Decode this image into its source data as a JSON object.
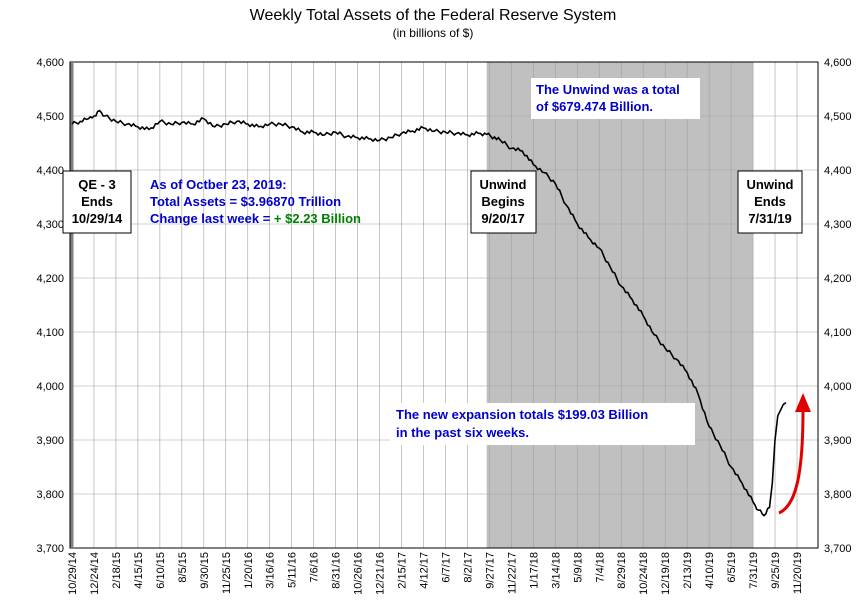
{
  "chart_data": {
    "type": "line",
    "title": "Weekly Total Assets of the Federal Reserve System",
    "subtitle": "(in billions of $)",
    "ylim": [
      3700,
      4600
    ],
    "y_ticks": [
      "3,700",
      "3,800",
      "3,900",
      "4,000",
      "4,100",
      "4,200",
      "4,300",
      "4,400",
      "4,500",
      "4,600"
    ],
    "x_ticks": [
      "10/29/14",
      "12/24/14",
      "2/18/15",
      "4/15/15",
      "6/10/15",
      "8/5/15",
      "9/30/15",
      "11/25/15",
      "1/20/16",
      "3/16/16",
      "5/11/16",
      "7/6/16",
      "8/31/16",
      "10/26/16",
      "12/21/16",
      "2/15/17",
      "4/12/17",
      "6/7/17",
      "8/2/17",
      "9/27/17",
      "11/22/17",
      "1/17/18",
      "3/14/18",
      "5/9/18",
      "7/4/18",
      "8/29/18",
      "10/24/18",
      "12/19/18",
      "2/13/19",
      "4/10/19",
      "6/5/19",
      "7/31/19",
      "9/25/19",
      "11/20/19"
    ],
    "grid": true,
    "line_color": "#000000",
    "shade_color": "#c0c0c0",
    "shaded_period": [
      "9/20/17",
      "7/31/19"
    ],
    "series": [
      {
        "points": [
          [
            "10/29/14",
            4485
          ],
          [
            "11/19/14",
            4490
          ],
          [
            "12/10/14",
            4495
          ],
          [
            "12/24/14",
            4500
          ],
          [
            "1/7/15",
            4510
          ],
          [
            "1/21/15",
            4500
          ],
          [
            "2/18/15",
            4490
          ],
          [
            "3/18/15",
            4485
          ],
          [
            "4/15/15",
            4480
          ],
          [
            "5/13/15",
            4475
          ],
          [
            "6/10/15",
            4490
          ],
          [
            "7/8/15",
            4485
          ],
          [
            "8/5/15",
            4488
          ],
          [
            "9/2/15",
            4485
          ],
          [
            "9/30/15",
            4495
          ],
          [
            "10/28/15",
            4480
          ],
          [
            "11/25/15",
            4485
          ],
          [
            "12/23/15",
            4490
          ],
          [
            "1/20/16",
            4485
          ],
          [
            "2/17/16",
            4480
          ],
          [
            "3/16/16",
            4485
          ],
          [
            "4/13/16",
            4485
          ],
          [
            "5/11/16",
            4480
          ],
          [
            "6/8/16",
            4470
          ],
          [
            "7/6/16",
            4470
          ],
          [
            "8/3/16",
            4465
          ],
          [
            "8/31/16",
            4470
          ],
          [
            "9/28/16",
            4462
          ],
          [
            "10/26/16",
            4460
          ],
          [
            "11/23/16",
            4458
          ],
          [
            "12/21/16",
            4455
          ],
          [
            "1/18/17",
            4460
          ],
          [
            "2/15/17",
            4468
          ],
          [
            "3/15/17",
            4472
          ],
          [
            "4/12/17",
            4478
          ],
          [
            "5/10/17",
            4472
          ],
          [
            "6/7/17",
            4470
          ],
          [
            "7/5/17",
            4468
          ],
          [
            "8/2/17",
            4465
          ],
          [
            "8/30/17",
            4468
          ],
          [
            "9/20/17",
            4466
          ],
          [
            "10/25/17",
            4455
          ],
          [
            "11/22/17",
            4440
          ],
          [
            "12/20/17",
            4435
          ],
          [
            "1/17/18",
            4410
          ],
          [
            "2/14/18",
            4395
          ],
          [
            "3/14/18",
            4375
          ],
          [
            "4/11/18",
            4335
          ],
          [
            "5/9/18",
            4300
          ],
          [
            "6/6/18",
            4275
          ],
          [
            "7/4/18",
            4255
          ],
          [
            "8/1/18",
            4220
          ],
          [
            "8/29/18",
            4185
          ],
          [
            "9/26/18",
            4160
          ],
          [
            "10/24/18",
            4130
          ],
          [
            "11/21/18",
            4095
          ],
          [
            "12/19/18",
            4070
          ],
          [
            "1/16/19",
            4050
          ],
          [
            "2/13/19",
            4025
          ],
          [
            "3/13/19",
            3985
          ],
          [
            "4/10/19",
            3925
          ],
          [
            "5/8/19",
            3890
          ],
          [
            "6/5/19",
            3850
          ],
          [
            "7/3/19",
            3820
          ],
          [
            "7/31/19",
            3785
          ],
          [
            "8/14/19",
            3770
          ],
          [
            "8/28/19",
            3760
          ],
          [
            "9/11/19",
            3775
          ],
          [
            "9/18/19",
            3820
          ],
          [
            "9/25/19",
            3900
          ],
          [
            "10/2/19",
            3945
          ],
          [
            "10/9/19",
            3955
          ],
          [
            "10/16/19",
            3966
          ],
          [
            "10/23/19",
            3969
          ]
        ]
      }
    ],
    "annotations": {
      "qe3": [
        "QE - 3",
        "Ends",
        "10/29/14"
      ],
      "unwind_begins": [
        "Unwind",
        "Begins",
        "9/20/17"
      ],
      "unwind_ends": [
        "Unwind",
        "Ends",
        "7/31/19"
      ],
      "asof": {
        "line1": "As of Octber 23, 2019:",
        "line2": "Total Assets = $3.96870 Trillion",
        "line3a": "Change last week = ",
        "line3b": "+ $2.23 Billion"
      },
      "unwind_total": [
        "The Unwind was a total",
        "of $679.474 Billion."
      ],
      "expansion": [
        "The new expansion totals $199.03 Billion",
        "in the past six weeks."
      ]
    },
    "colors": {
      "blue_text": "#0000cc",
      "green_text": "#008000",
      "arrow": "#e00000"
    }
  }
}
